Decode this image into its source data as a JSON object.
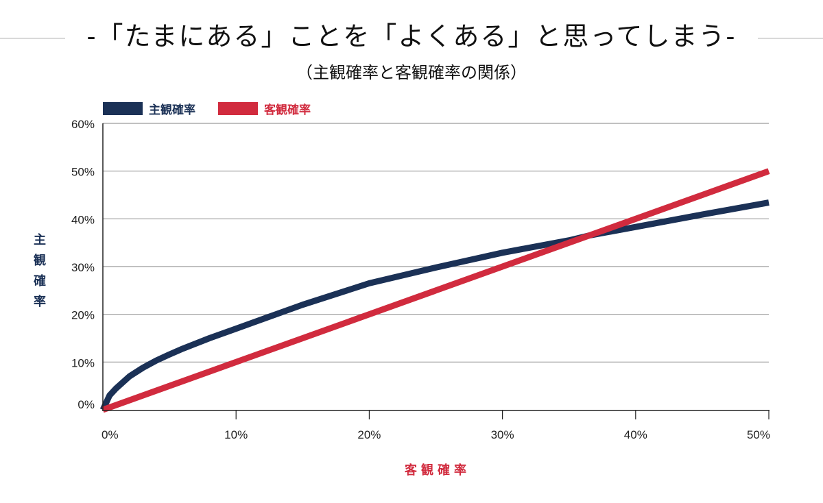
{
  "title": "-「たまにある」ことを「よくある」と思ってしまう-",
  "subtitle": "（主観確率と客観確率の関係）",
  "colors": {
    "subjective": "#1b3156",
    "objective": "#d12b3e",
    "grid": "#9a9a9a",
    "axis": "#222222"
  },
  "chart_data": {
    "type": "line",
    "xlabel": "客観確率",
    "ylabel": "主観確率",
    "xlim": [
      0,
      50
    ],
    "ylim": [
      0,
      60
    ],
    "x_ticks": [
      "0%",
      "10%",
      "20%",
      "30%",
      "40%",
      "50%"
    ],
    "y_ticks": [
      "0%",
      "10%",
      "20%",
      "30%",
      "40%",
      "50%",
      "60%"
    ],
    "grid": "horizontal",
    "legend_position": "top-left",
    "series": [
      {
        "name": "主観確率",
        "color": "#1b3156",
        "x": [
          0,
          0.5,
          1,
          2,
          3,
          4,
          5,
          6,
          8,
          10,
          12,
          15,
          20,
          25,
          30,
          35,
          36.5,
          40,
          45,
          50
        ],
        "y": [
          0,
          3,
          4.5,
          7,
          8.8,
          10.3,
          11.6,
          12.8,
          15,
          17,
          19,
          22,
          26.5,
          29.8,
          32.9,
          35.5,
          36.5,
          38.3,
          40.9,
          43.4
        ]
      },
      {
        "name": "客観確率",
        "color": "#d12b3e",
        "x": [
          0,
          50
        ],
        "y": [
          0,
          50
        ]
      }
    ]
  }
}
